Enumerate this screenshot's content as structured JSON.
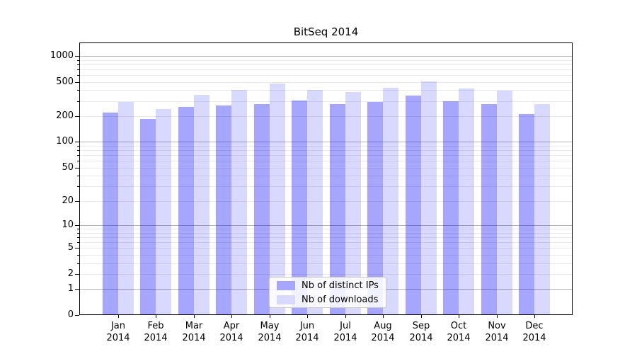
{
  "chart_data": {
    "type": "bar",
    "title": "BitSeq 2014",
    "categories": [
      "Jan",
      "Feb",
      "Mar",
      "Apr",
      "May",
      "Jun",
      "Jul",
      "Aug",
      "Sep",
      "Oct",
      "Nov",
      "Dec"
    ],
    "x_tick_year": "2014",
    "series": [
      {
        "name": "Nb of distinct IPs",
        "color_hex": "#0000FF",
        "alpha": 0.35,
        "values": [
          220,
          185,
          255,
          265,
          275,
          305,
          275,
          290,
          345,
          300,
          275,
          210
        ]
      },
      {
        "name": "Nb of downloads",
        "color_hex": "#0000FF",
        "alpha": 0.15,
        "values": [
          290,
          240,
          350,
          405,
          475,
          405,
          380,
          425,
          505,
          420,
          395,
          275
        ]
      }
    ],
    "yscale": "log1p",
    "ytick_labels": [
      "0",
      "1",
      "2",
      "5",
      "10",
      "20",
      "50",
      "100",
      "200",
      "500",
      "1000"
    ],
    "ylim": [
      0,
      1430
    ],
    "grid": {
      "major_decades": [
        1,
        10,
        100,
        1000
      ],
      "minor_subs": [
        2,
        3,
        4,
        5,
        6,
        7,
        8,
        9
      ]
    },
    "legend": {
      "position": "lower center"
    },
    "colors": {
      "bar_dark_blended": "#a6a6ff",
      "bar_light_blended": "#d9d9ff",
      "major_grid": "#b4b4b4",
      "minor_grid": "#e9e9e9",
      "axis": "#000000",
      "background": "#ffffff"
    }
  }
}
